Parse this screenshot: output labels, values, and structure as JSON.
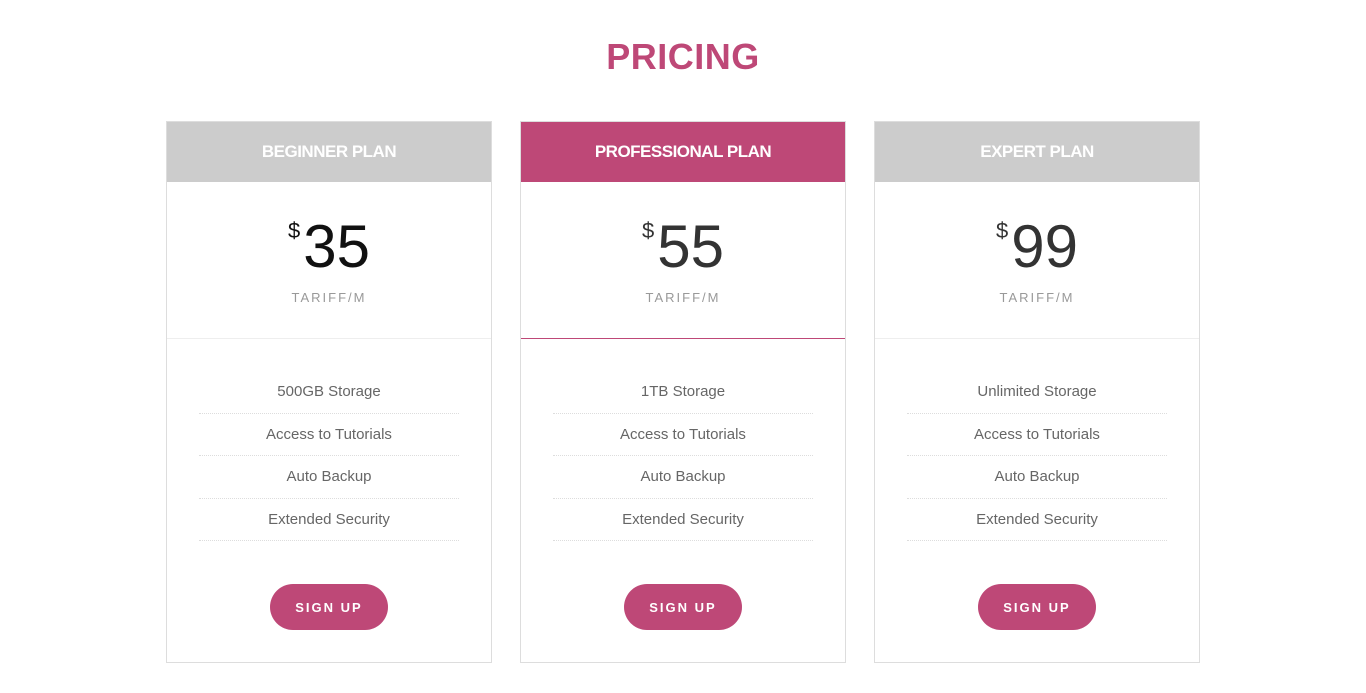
{
  "title": "PRICING",
  "plans": [
    {
      "name": "BEGINNER PLAN",
      "currency": "$",
      "price": "35",
      "period": "TARIFF/M",
      "features": [
        "500GB Storage",
        "Access to Tutorials",
        "Auto Backup",
        "Extended Security"
      ],
      "cta": "SIGN UP"
    },
    {
      "name": "PROFESSIONAL PLAN",
      "currency": "$",
      "price": "55",
      "period": "TARIFF/M",
      "features": [
        "1TB Storage",
        "Access to Tutorials",
        "Auto Backup",
        "Extended Security"
      ],
      "cta": "SIGN UP",
      "highlighted": true
    },
    {
      "name": "EXPERT PLAN",
      "currency": "$",
      "price": "99",
      "period": "TARIFF/M",
      "features": [
        "Unlimited Storage",
        "Access to Tutorials",
        "Auto Backup",
        "Extended Security"
      ],
      "cta": "SIGN UP"
    }
  ],
  "colors": {
    "accent": "#be4877",
    "header_grey": "#cccccc"
  }
}
